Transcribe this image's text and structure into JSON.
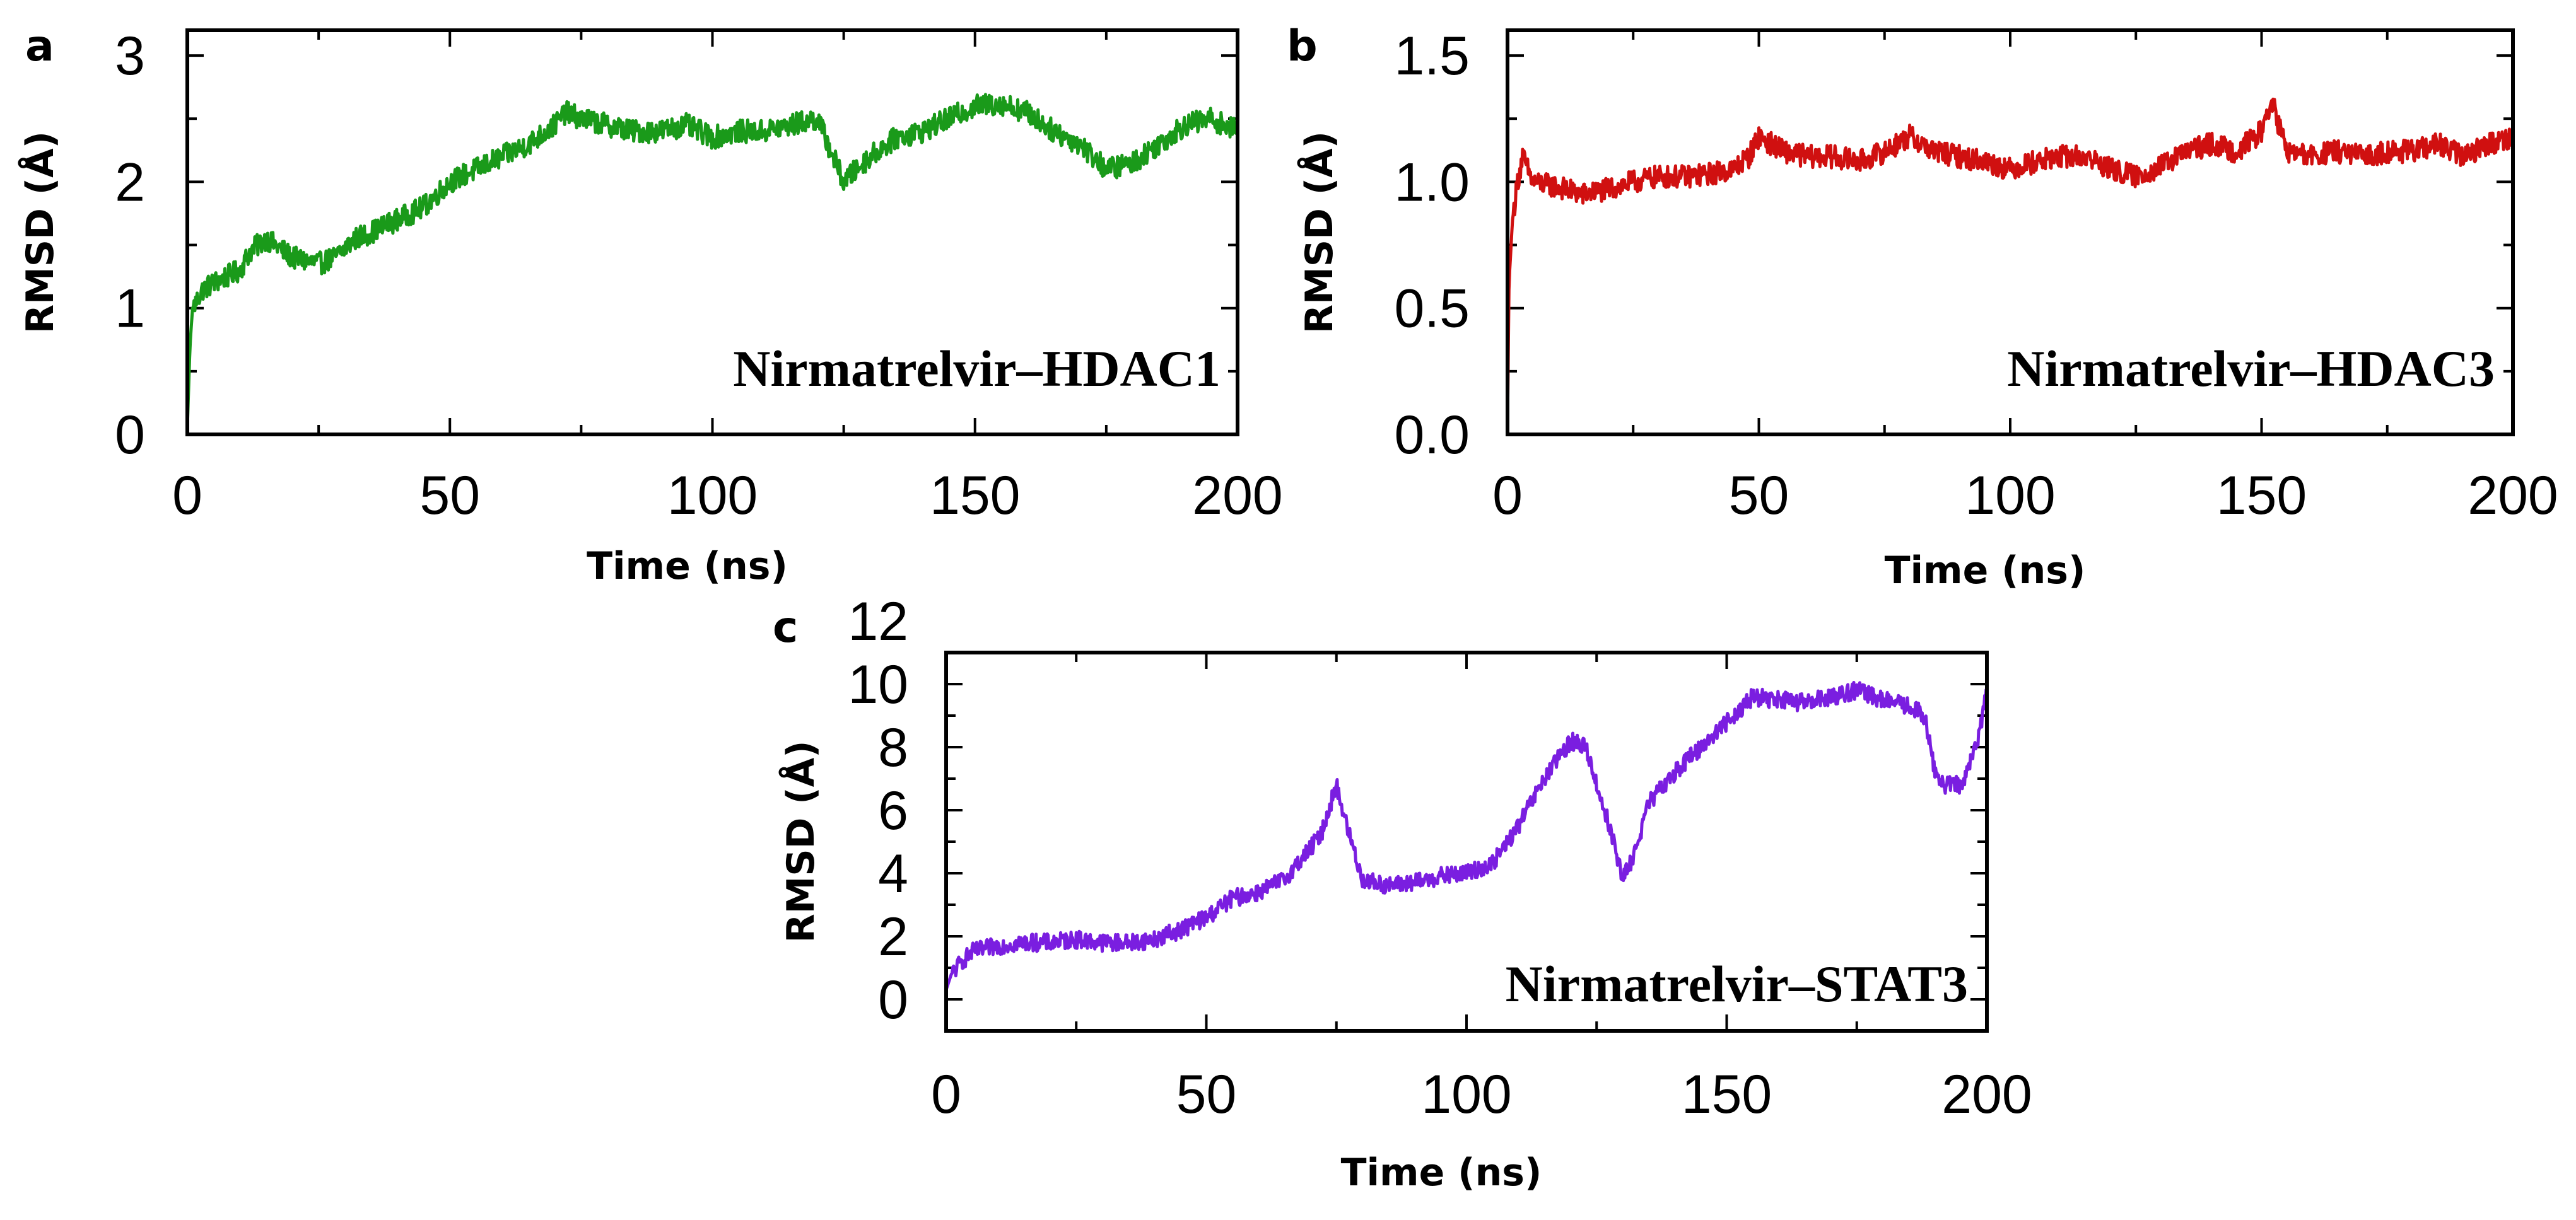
{
  "chart_data": [
    {
      "type": "line",
      "panel": "a",
      "label": "Nirmatrelvir–HDAC1",
      "xlabel": "Time (ns)",
      "ylabel": "RMSD (Å)",
      "xlim": [
        0,
        200
      ],
      "ylim": [
        0,
        3.2
      ],
      "xticks": [
        0,
        50,
        100,
        150,
        200
      ],
      "xtick_labels": [
        "0",
        "50",
        "100",
        "150",
        "200"
      ],
      "yticks": [
        0,
        1,
        2,
        3
      ],
      "ytick_labels": [
        "0",
        "1",
        "2",
        "3"
      ],
      "minor_x": 25,
      "minor_y": 0.5,
      "color": "#1a9a1a",
      "noise": 0.09,
      "x": [
        0,
        0.5,
        1,
        3,
        5,
        10,
        12,
        15,
        20,
        25,
        28,
        32,
        35,
        40,
        45,
        50,
        55,
        60,
        65,
        70,
        72,
        75,
        80,
        85,
        90,
        95,
        100,
        105,
        110,
        115,
        120,
        122,
        125,
        130,
        135,
        140,
        145,
        150,
        155,
        160,
        165,
        170,
        175,
        180,
        185,
        190,
        195,
        200
      ],
      "y": [
        0.05,
        0.7,
        1.0,
        1.15,
        1.2,
        1.3,
        1.45,
        1.55,
        1.4,
        1.35,
        1.4,
        1.55,
        1.6,
        1.7,
        1.8,
        2.0,
        2.1,
        2.2,
        2.3,
        2.45,
        2.55,
        2.5,
        2.45,
        2.4,
        2.4,
        2.45,
        2.35,
        2.4,
        2.4,
        2.45,
        2.5,
        2.3,
        2.0,
        2.2,
        2.35,
        2.4,
        2.5,
        2.6,
        2.62,
        2.55,
        2.4,
        2.3,
        2.1,
        2.15,
        2.3,
        2.45,
        2.5,
        2.4
      ]
    },
    {
      "type": "line",
      "panel": "b",
      "label": "Nirmatrelvir–HDAC3",
      "xlabel": "Time (ns)",
      "ylabel": "RMSD (Å)",
      "xlim": [
        0,
        200
      ],
      "ylim": [
        0,
        1.6
      ],
      "xticks": [
        0,
        50,
        100,
        150,
        200
      ],
      "xtick_labels": [
        "0",
        "50",
        "100",
        "150",
        "200"
      ],
      "yticks": [
        0,
        0.5,
        1.0,
        1.5
      ],
      "ytick_labels": [
        "0.0",
        "0.5",
        "1.0",
        "1.5"
      ],
      "minor_x": 25,
      "minor_y": 0.25,
      "color": "#d01010",
      "noise": 0.045,
      "x": [
        0,
        0.3,
        1,
        2,
        3,
        5,
        10,
        15,
        20,
        25,
        30,
        35,
        40,
        45,
        48,
        50,
        55,
        60,
        65,
        70,
        75,
        80,
        85,
        90,
        95,
        100,
        105,
        110,
        115,
        120,
        125,
        130,
        135,
        140,
        145,
        150,
        152,
        155,
        160,
        165,
        170,
        175,
        180,
        185,
        190,
        195,
        200
      ],
      "y": [
        0.02,
        0.6,
        0.85,
        1.0,
        1.1,
        1.0,
        0.98,
        0.95,
        0.97,
        1.0,
        1.02,
        1.02,
        1.03,
        1.05,
        1.1,
        1.18,
        1.12,
        1.1,
        1.1,
        1.08,
        1.12,
        1.18,
        1.12,
        1.1,
        1.08,
        1.05,
        1.08,
        1.1,
        1.1,
        1.05,
        1.02,
        1.06,
        1.12,
        1.15,
        1.12,
        1.2,
        1.32,
        1.12,
        1.1,
        1.12,
        1.1,
        1.12,
        1.12,
        1.15,
        1.1,
        1.15,
        1.18
      ]
    },
    {
      "type": "line",
      "panel": "c",
      "label": "Nirmatrelvir–STAT3",
      "xlabel": "Time (ns)",
      "ylabel": "RMSD (Å)",
      "xlim": [
        0,
        200
      ],
      "ylim": [
        -1,
        11
      ],
      "xticks": [
        0,
        50,
        100,
        150,
        200
      ],
      "xtick_labels": [
        "0",
        "50",
        "100",
        "150",
        "200"
      ],
      "yticks": [
        0,
        2,
        4,
        6,
        8,
        10,
        12
      ],
      "ytick_labels": [
        "0",
        "2",
        "4",
        "6",
        "8",
        "10",
        "12"
      ],
      "minor_x": 25,
      "minor_y": 1,
      "color": "#7a1ee0",
      "noise": 0.28,
      "x": [
        0,
        1,
        3,
        5,
        10,
        15,
        20,
        25,
        30,
        35,
        40,
        45,
        50,
        55,
        60,
        65,
        70,
        72,
        75,
        77,
        80,
        85,
        90,
        95,
        100,
        105,
        110,
        115,
        120,
        123,
        125,
        128,
        130,
        132,
        135,
        140,
        145,
        150,
        155,
        160,
        165,
        170,
        175,
        180,
        185,
        188,
        190,
        192,
        195,
        198,
        200
      ],
      "y": [
        0.3,
        0.8,
        1.2,
        1.5,
        1.7,
        1.8,
        1.8,
        1.9,
        1.8,
        1.8,
        1.9,
        2.2,
        2.6,
        3.2,
        3.4,
        3.8,
        4.8,
        5.2,
        6.8,
        5.5,
        3.8,
        3.6,
        3.7,
        3.9,
        4.0,
        4.3,
        5.5,
        7.0,
        8.2,
        8.0,
        6.8,
        5.2,
        3.8,
        4.5,
        6.2,
        7.2,
        8.0,
        8.8,
        9.6,
        9.5,
        9.4,
        9.6,
        9.8,
        9.5,
        9.3,
        9.0,
        7.2,
        6.8,
        6.8,
        8.0,
        9.8
      ]
    }
  ]
}
